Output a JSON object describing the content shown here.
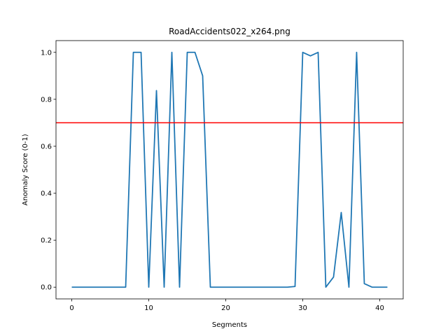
{
  "chart_data": {
    "type": "line",
    "title": "RoadAccidents022_x264.png",
    "xlabel": "Segments",
    "ylabel": "Anomaly Score (0-1)",
    "xlim": [
      -2.05,
      43.05
    ],
    "ylim": [
      -0.05,
      1.05
    ],
    "xticks": [
      0,
      10,
      20,
      30,
      40
    ],
    "yticks": [
      0.0,
      0.2,
      0.4,
      0.6,
      0.8,
      1.0
    ],
    "ytick_labels": [
      "0.0",
      "0.2",
      "0.4",
      "0.6",
      "0.8",
      "1.0"
    ],
    "grid": false,
    "series": [
      {
        "color": "#1f77b4",
        "x": [
          0,
          1,
          2,
          3,
          4,
          5,
          6,
          7,
          8,
          9,
          10,
          11,
          12,
          13,
          14,
          15,
          16,
          17,
          18,
          19,
          20,
          21,
          22,
          23,
          24,
          25,
          26,
          27,
          28,
          29,
          30,
          31,
          32,
          33,
          34,
          35,
          36,
          37,
          38,
          39,
          40,
          41
        ],
        "values": [
          0,
          0,
          0,
          0,
          0,
          0,
          0,
          0,
          1.0,
          1.0,
          0,
          0.837,
          0,
          1.0,
          0,
          1.0,
          1.0,
          0.9,
          0,
          0,
          0,
          0,
          0,
          0,
          0,
          0,
          0,
          0,
          0,
          0.003,
          1.0,
          0.985,
          1.0,
          0,
          0.043,
          0.318,
          0,
          1.0,
          0.015,
          0,
          0,
          0
        ]
      }
    ],
    "threshold": {
      "value": 0.7,
      "color": "#ff0000"
    }
  }
}
